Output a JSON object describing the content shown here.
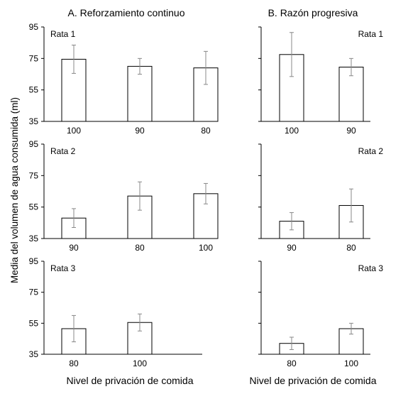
{
  "figure": {
    "ylabel": "Media del volumen de agua consumida (ml)",
    "col_titles": [
      "A. Reforzamiento continuo",
      "B. Razón progresiva"
    ],
    "xlabels": [
      "Nivel de privación de comida",
      "Nivel de privación de comida"
    ]
  },
  "chart_data": [
    {
      "type": "bar",
      "column": "A. Reforzamiento continuo",
      "panel_label": "Rata 1",
      "categories": [
        "100",
        "90",
        "80"
      ],
      "values": [
        74.5,
        70,
        69
      ],
      "errors": [
        9,
        5,
        10.5
      ],
      "ylim": [
        35,
        95
      ],
      "yticks": [
        35,
        55,
        75,
        95
      ],
      "grid": false
    },
    {
      "type": "bar",
      "column": "B. Razón progresiva",
      "panel_label": "Rata 1",
      "categories": [
        "100",
        "90"
      ],
      "values": [
        77.5,
        69.5
      ],
      "errors": [
        14,
        5.5
      ],
      "ylim": [
        35,
        95
      ],
      "yticks": [
        35,
        55,
        75,
        95
      ],
      "grid": false
    },
    {
      "type": "bar",
      "column": "A. Reforzamiento continuo",
      "panel_label": "Rata 2",
      "categories": [
        "90",
        "80",
        "100"
      ],
      "values": [
        48,
        62,
        63.5
      ],
      "errors": [
        6,
        9,
        6.5
      ],
      "ylim": [
        35,
        95
      ],
      "yticks": [
        35,
        55,
        75,
        95
      ],
      "grid": false
    },
    {
      "type": "bar",
      "column": "B. Razón progresiva",
      "panel_label": "Rata 2",
      "categories": [
        "90",
        "80"
      ],
      "values": [
        46,
        56
      ],
      "errors": [
        5.5,
        10.5
      ],
      "ylim": [
        35,
        95
      ],
      "yticks": [
        35,
        55,
        75,
        95
      ],
      "grid": false
    },
    {
      "type": "bar",
      "column": "A. Reforzamiento continuo",
      "panel_label": "Rata 3",
      "categories": [
        "80",
        "100"
      ],
      "values": [
        51.5,
        55.5
      ],
      "errors": [
        8.5,
        5.5
      ],
      "ylim": [
        35,
        95
      ],
      "yticks": [
        35,
        55,
        75,
        95
      ],
      "grid": false
    },
    {
      "type": "bar",
      "column": "B. Razón progresiva",
      "panel_label": "Rata 3",
      "categories": [
        "80",
        "100"
      ],
      "values": [
        42,
        51.5
      ],
      "errors": [
        4,
        3.5
      ],
      "ylim": [
        35,
        95
      ],
      "yticks": [
        35,
        55,
        75,
        95
      ],
      "grid": false
    }
  ]
}
